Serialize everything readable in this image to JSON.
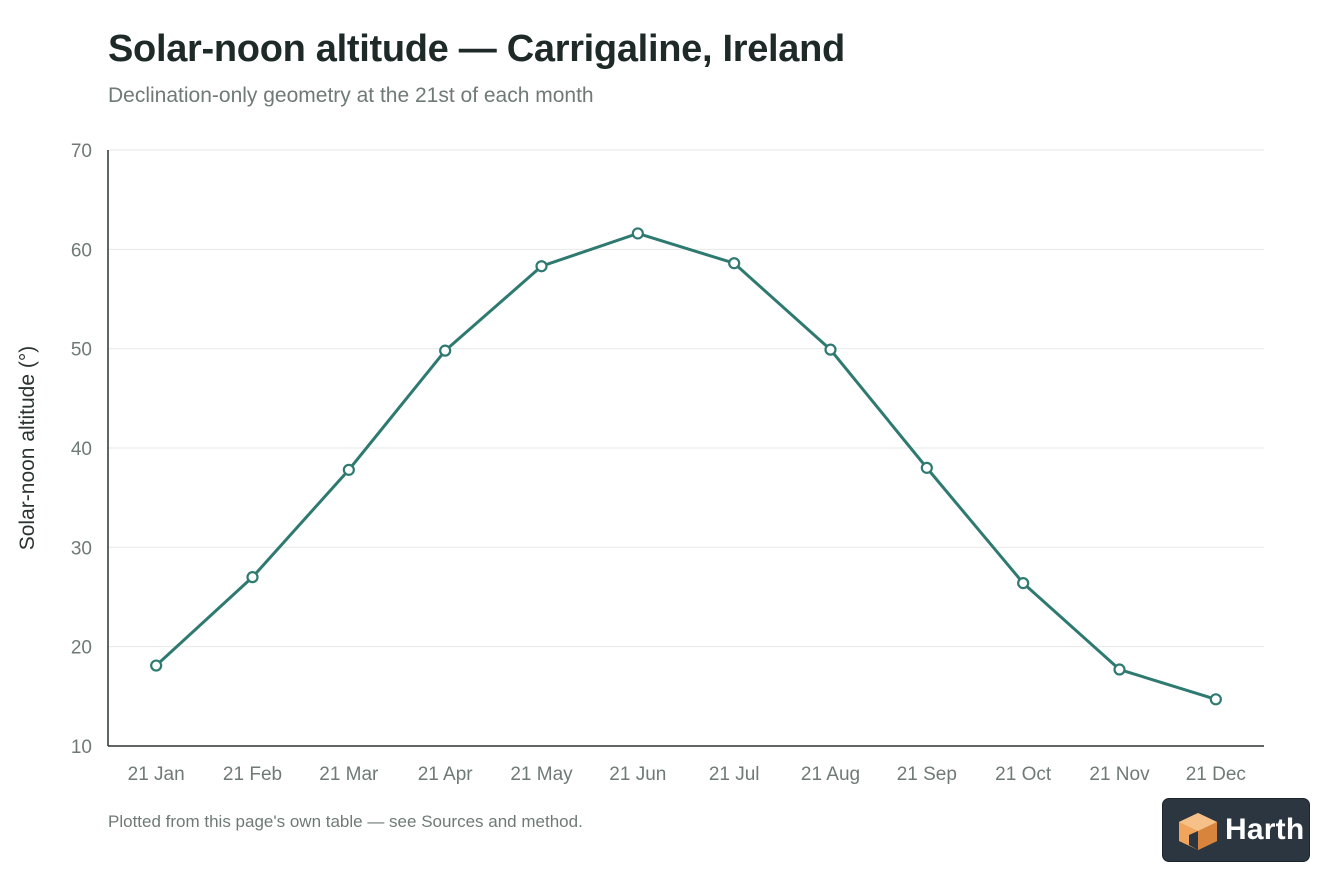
{
  "title": "Solar-noon altitude — Carrigaline, Ireland",
  "subtitle": "Declination-only geometry at the 21st of each month",
  "footnote": "Plotted from this page's own table — see Sources and method.",
  "logo": {
    "text": "Harth",
    "icon": "cube-icon",
    "background": "#2b3640",
    "accent": "#f0a45c"
  },
  "chart_data": {
    "type": "line",
    "title": "Solar-noon altitude — Carrigaline, Ireland",
    "subtitle": "Declination-only geometry at the 21st of each month",
    "xlabel": "",
    "ylabel": "Solar-noon altitude (°)",
    "categories": [
      "21 Jan",
      "21 Feb",
      "21 Mar",
      "21 Apr",
      "21 May",
      "21 Jun",
      "21 Jul",
      "21 Aug",
      "21 Sep",
      "21 Oct",
      "21 Nov",
      "21 Dec"
    ],
    "series": [
      {
        "values": [
          18.1,
          27.0,
          37.8,
          49.8,
          58.3,
          61.6,
          58.6,
          49.9,
          38.0,
          26.4,
          17.7,
          14.7
        ],
        "color": "#2f7a70"
      }
    ],
    "ylim": [
      10,
      70
    ],
    "yticks": [
      10,
      20,
      30,
      40,
      50,
      60,
      70
    ],
    "grid": true,
    "legend": "none"
  }
}
